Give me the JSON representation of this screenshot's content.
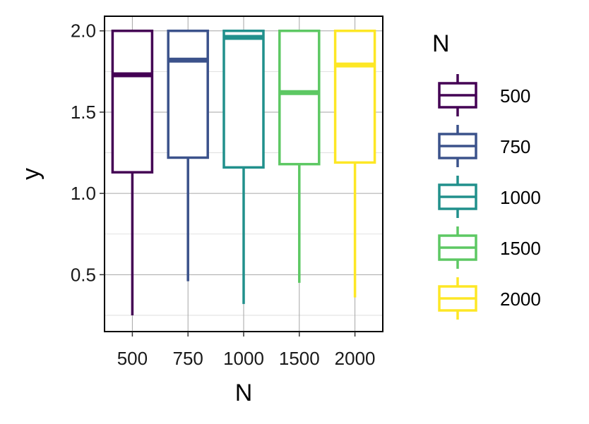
{
  "chart_data": {
    "type": "box",
    "xlabel": "N",
    "ylabel": "y",
    "ylim": [
      0.15,
      2.09
    ],
    "yticks": [
      0.5,
      1.0,
      1.5,
      2.0
    ],
    "ytick_labels": [
      "0.5",
      "1.0",
      "1.5",
      "2.0"
    ],
    "categories": [
      "500",
      "750",
      "1000",
      "1500",
      "2000"
    ],
    "grid": true,
    "legend": {
      "title": "N",
      "position": "right"
    },
    "series": [
      {
        "name": "500",
        "color": "#440154",
        "whisker_low": 0.25,
        "q1": 1.13,
        "median": 1.73,
        "q3": 2.0,
        "whisker_high": 2.0
      },
      {
        "name": "750",
        "color": "#3B528B",
        "whisker_low": 0.46,
        "q1": 1.22,
        "median": 1.82,
        "q3": 2.0,
        "whisker_high": 2.0
      },
      {
        "name": "1000",
        "color": "#21908C",
        "whisker_low": 0.32,
        "q1": 1.16,
        "median": 1.96,
        "q3": 2.0,
        "whisker_high": 2.0
      },
      {
        "name": "1500",
        "color": "#5DC863",
        "whisker_low": 0.45,
        "q1": 1.18,
        "median": 1.62,
        "q3": 2.0,
        "whisker_high": 2.0
      },
      {
        "name": "2000",
        "color": "#FDE725",
        "whisker_low": 0.36,
        "q1": 1.19,
        "median": 1.79,
        "q3": 2.0,
        "whisker_high": 2.0
      }
    ]
  }
}
